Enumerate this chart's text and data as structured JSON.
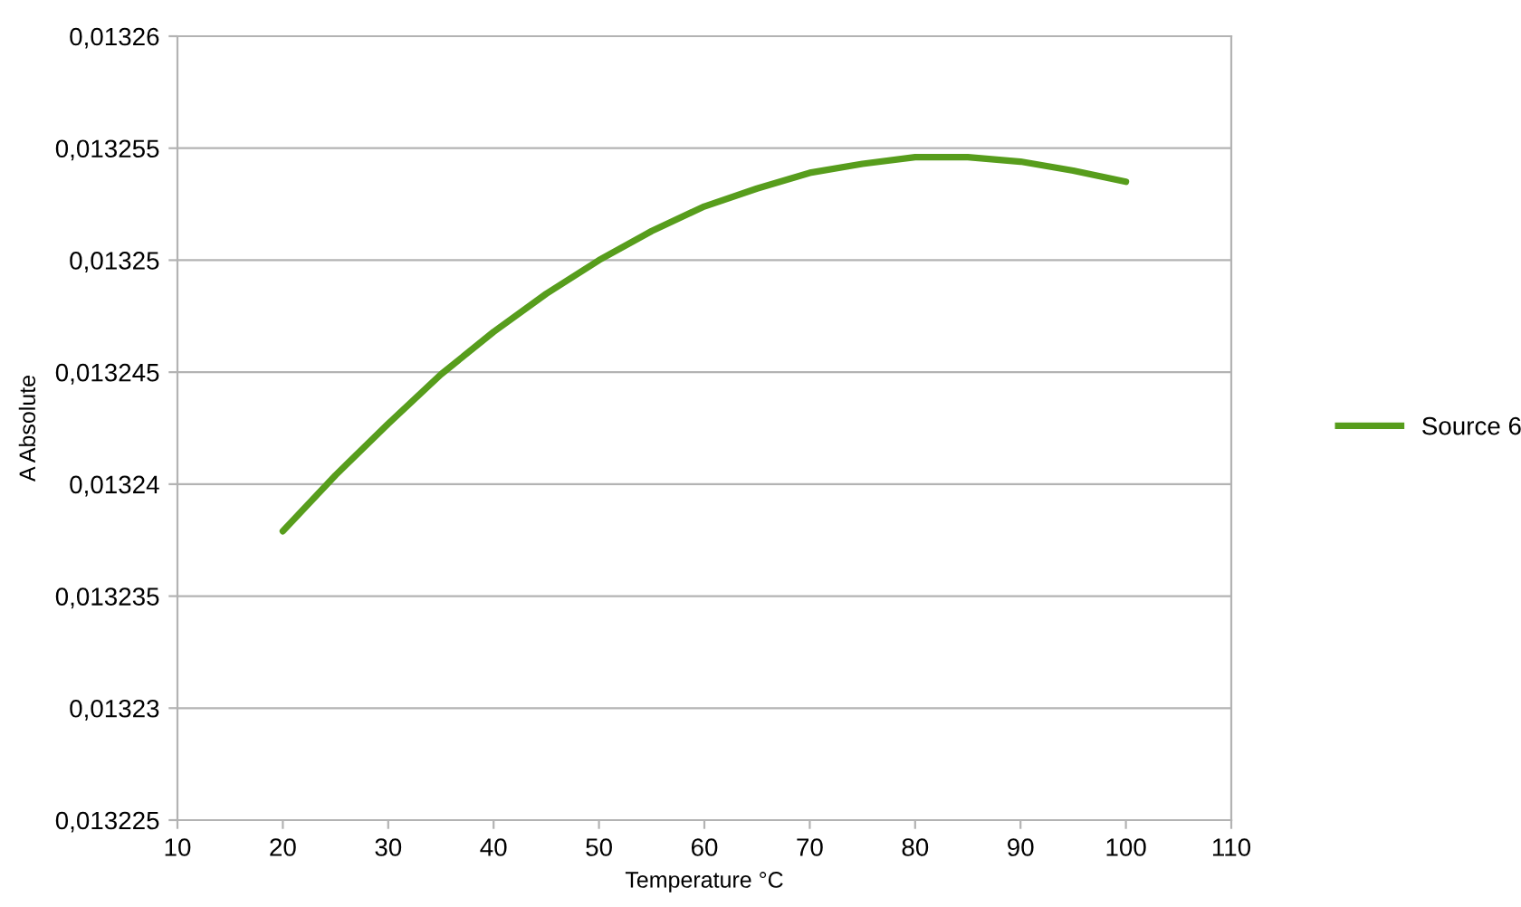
{
  "chart_data": {
    "type": "line",
    "xlabel": "Temperature °C",
    "ylabel": "A Absolute",
    "x": [
      20,
      25,
      30,
      35,
      40,
      45,
      50,
      55,
      60,
      65,
      70,
      75,
      80,
      85,
      90,
      95,
      100
    ],
    "series": [
      {
        "name": "Source 6",
        "color": "#579d1c",
        "values": [
          0.0132379,
          0.0132404,
          0.0132427,
          0.0132449,
          0.0132468,
          0.0132485,
          0.01325,
          0.0132513,
          0.0132524,
          0.0132532,
          0.0132539,
          0.0132543,
          0.0132546,
          0.0132546,
          0.0132544,
          0.013254,
          0.0132535
        ]
      }
    ],
    "xlim": [
      10,
      110
    ],
    "xticks": [
      10,
      20,
      30,
      40,
      50,
      60,
      70,
      80,
      90,
      100,
      110
    ],
    "ylim": [
      0.013225,
      0.01326
    ],
    "yticks": [
      {
        "value": 0.013225,
        "label": "0,013225"
      },
      {
        "value": 0.01323,
        "label": "0,01323"
      },
      {
        "value": 0.013235,
        "label": "0,013235"
      },
      {
        "value": 0.01324,
        "label": "0,01324"
      },
      {
        "value": 0.013245,
        "label": "0,013245"
      },
      {
        "value": 0.01325,
        "label": "0,01325"
      },
      {
        "value": 0.013255,
        "label": "0,013255"
      },
      {
        "value": 0.01326,
        "label": "0,01326"
      }
    ],
    "grid": "y",
    "legend": "right",
    "marker": "none",
    "line_style": "solid"
  }
}
